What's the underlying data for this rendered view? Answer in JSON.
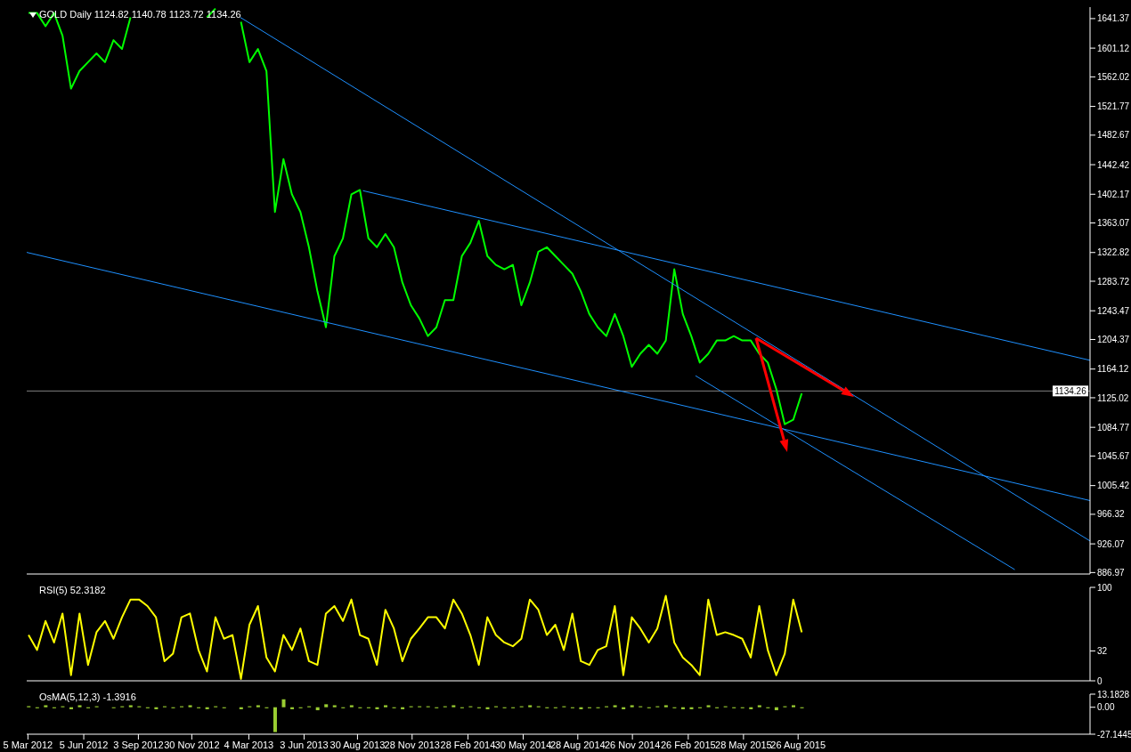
{
  "chart_data": [
    {
      "type": "line",
      "title": "GOLD Daily 1124.82 1140.78 1123.72 1134.26",
      "xlim": [
        "2012-03-03",
        "2016-12-19"
      ],
      "ylim": [
        885,
        1657
      ],
      "yticks": [
        1641.37,
        1601.12,
        1562.02,
        1521.77,
        1482.67,
        1442.42,
        1402.17,
        1363.07,
        1322.82,
        1283.72,
        1243.47,
        1204.37,
        1164.12,
        1125.02,
        1084.77,
        1045.67,
        1005.42,
        966.32,
        926.07,
        886.97
      ],
      "tick_labels": "y",
      "marker": "none",
      "line_style": "solid",
      "series": [
        {
          "color": "#00ff00",
          "x": [
            "2012-03-06",
            "2012-03-20",
            "2012-04-03",
            "2012-04-17",
            "2012-05-01",
            "2012-05-15",
            "2012-05-29",
            "2012-06-12",
            "2012-06-26",
            "2012-07-10",
            "2012-07-24",
            "2012-08-07",
            "2012-08-21",
            "2012-09-04",
            "2012-09-18",
            "2012-10-02",
            "2012-10-16",
            "2012-10-30",
            "2012-11-13",
            "2012-11-27",
            "2012-12-11",
            "2012-12-25",
            "2013-01-08",
            "2013-01-22",
            "2013-02-05",
            "2013-02-19",
            "2013-03-05",
            "2013-03-19",
            "2013-04-02",
            "2013-04-16",
            "2013-04-30",
            "2013-05-14",
            "2013-05-28",
            "2013-06-11",
            "2013-06-25",
            "2013-07-09",
            "2013-07-23",
            "2013-08-06",
            "2013-08-20",
            "2013-09-03",
            "2013-09-17",
            "2013-10-01",
            "2013-10-15",
            "2013-10-29",
            "2013-11-12",
            "2013-11-26",
            "2013-12-10",
            "2013-12-24",
            "2014-01-07",
            "2014-01-21",
            "2014-02-04",
            "2014-02-18",
            "2014-03-04",
            "2014-03-18",
            "2014-04-01",
            "2014-04-15",
            "2014-04-29",
            "2014-05-13",
            "2014-05-27",
            "2014-06-10",
            "2014-06-24",
            "2014-07-08",
            "2014-07-22",
            "2014-08-05",
            "2014-08-19",
            "2014-09-02",
            "2014-09-16",
            "2014-09-30",
            "2014-10-14",
            "2014-10-28",
            "2014-11-11",
            "2014-11-25",
            "2014-12-09",
            "2014-12-23",
            "2015-01-06",
            "2015-01-20",
            "2015-02-03",
            "2015-02-17",
            "2015-03-03",
            "2015-03-17",
            "2015-03-31",
            "2015-04-14",
            "2015-04-28",
            "2015-05-12",
            "2015-05-26",
            "2015-06-09",
            "2015-06-23",
            "2015-07-07",
            "2015-07-21",
            "2015-08-04",
            "2015-08-18",
            "2015-09-01"
          ],
          "values": [
            1649,
            1649,
            1631,
            1649,
            1618,
            1546,
            1570,
            1582,
            1594,
            1582,
            1612,
            1600,
            1643,
            null,
            null,
            null,
            null,
            null,
            null,
            null,
            null,
            1643,
            1655,
            null,
            null,
            1637,
            1582,
            1600,
            1570,
            1378,
            1450,
            1402,
            1378,
            1330,
            1270,
            1221,
            1318,
            1342,
            1402,
            1408,
            1342,
            1330,
            1348,
            1330,
            1282,
            1251,
            1233,
            1209,
            1221,
            1258,
            1258,
            1318,
            1336,
            1366,
            1318,
            1306,
            1300,
            1306,
            1251,
            1282,
            1324,
            1330,
            1318,
            1306,
            1294,
            1270,
            1239,
            1221,
            1209,
            1239,
            1209,
            1167,
            1185,
            1197,
            1185,
            1203,
            1300,
            1239,
            1209,
            1173,
            1185,
            1203,
            1203,
            1209,
            1203,
            1203,
            1185,
            1173,
            1137,
            1089,
            1095,
            1131
          ]
        },
        {
          "color": "#1e90ff",
          "x": [
            "2013-02-18",
            "2016-12-19"
          ],
          "values": [
            1643,
            930
          ]
        },
        {
          "color": "#1e90ff",
          "x": [
            "2013-09-08",
            "2016-12-19"
          ],
          "values": [
            1407,
            1176
          ]
        },
        {
          "color": "#1e90ff",
          "x": [
            "2012-03-03",
            "2016-12-19"
          ],
          "values": [
            1323,
            985
          ]
        },
        {
          "color": "#1e90ff",
          "x": [
            "2015-03-10",
            "2016-08-17"
          ],
          "values": [
            1155,
            891
          ]
        }
      ],
      "ref_lines": [
        {
          "axis": "y",
          "value": 1134.26,
          "label": "1134.26",
          "color": "#808080"
        }
      ]
    },
    {
      "type": "line",
      "title": "RSI(5) 52.3182",
      "xlim": [
        "2012-03-03",
        "2016-12-19"
      ],
      "ylim": [
        0,
        100
      ],
      "yticks": [
        0,
        32,
        100
      ],
      "tick_labels": "y",
      "marker": "none",
      "color": "#ffff00",
      "x": [
        "2012-03-06",
        "2012-03-20",
        "2012-04-03",
        "2012-04-17",
        "2012-05-01",
        "2012-05-15",
        "2012-05-29",
        "2012-06-12",
        "2012-06-26",
        "2012-07-10",
        "2012-07-24",
        "2012-08-07",
        "2012-08-21",
        "2012-09-04",
        "2012-09-18",
        "2012-10-02",
        "2012-10-16",
        "2012-10-30",
        "2012-11-13",
        "2012-11-27",
        "2012-12-11",
        "2012-12-25",
        "2013-01-08",
        "2013-01-22",
        "2013-02-05",
        "2013-02-19",
        "2013-03-05",
        "2013-03-19",
        "2013-04-02",
        "2013-04-16",
        "2013-04-30",
        "2013-05-14",
        "2013-05-28",
        "2013-06-11",
        "2013-06-25",
        "2013-07-09",
        "2013-07-23",
        "2013-08-06",
        "2013-08-20",
        "2013-09-03",
        "2013-09-17",
        "2013-10-01",
        "2013-10-15",
        "2013-10-29",
        "2013-11-12",
        "2013-11-26",
        "2013-12-10",
        "2013-12-24",
        "2014-01-07",
        "2014-01-21",
        "2014-02-04",
        "2014-02-18",
        "2014-03-04",
        "2014-03-18",
        "2014-04-01",
        "2014-04-15",
        "2014-04-29",
        "2014-05-13",
        "2014-05-27",
        "2014-06-10",
        "2014-06-24",
        "2014-07-08",
        "2014-07-22",
        "2014-08-05",
        "2014-08-19",
        "2014-09-02",
        "2014-09-16",
        "2014-09-30",
        "2014-10-14",
        "2014-10-28",
        "2014-11-11",
        "2014-11-25",
        "2014-12-09",
        "2014-12-23",
        "2015-01-06",
        "2015-01-20",
        "2015-02-03",
        "2015-02-17",
        "2015-03-03",
        "2015-03-17",
        "2015-03-31",
        "2015-04-14",
        "2015-04-28",
        "2015-05-12",
        "2015-05-26",
        "2015-06-09",
        "2015-06-23",
        "2015-07-07",
        "2015-07-21",
        "2015-08-04",
        "2015-08-18",
        "2015-09-01"
      ],
      "values": [
        49,
        33,
        64,
        41,
        72,
        6,
        72,
        17,
        52,
        64,
        45,
        68,
        87,
        87,
        80,
        68,
        21,
        29,
        68,
        72,
        33,
        10,
        68,
        45,
        49,
        2,
        60,
        80,
        25,
        10,
        49,
        33,
        56,
        21,
        17,
        72,
        80,
        64,
        87,
        49,
        45,
        17,
        76,
        56,
        21,
        45,
        56,
        68,
        68,
        56,
        87,
        72,
        49,
        17,
        68,
        49,
        41,
        37,
        45,
        87,
        76,
        49,
        60,
        33,
        72,
        21,
        17,
        33,
        37,
        80,
        6,
        68,
        56,
        41,
        56,
        91,
        41,
        25,
        17,
        6,
        87,
        49,
        52,
        49,
        45,
        25,
        80,
        33,
        6,
        29,
        87,
        52
      ]
    },
    {
      "type": "bar",
      "title": "OsMA(5,12,3) -1.3916",
      "xlim": [
        "2012-03-03",
        "2016-12-19"
      ],
      "xticks": [
        {
          "value": "2012-03-05",
          "label": "5 Mar 2012"
        },
        {
          "value": "2012-06-05",
          "label": "5 Jun 2012"
        },
        {
          "value": "2012-09-03",
          "label": "3 Sep 2012"
        },
        {
          "value": "2012-11-30",
          "label": "30 Nov 2012"
        },
        {
          "value": "2013-03-04",
          "label": "4 Mar 2013"
        },
        {
          "value": "2013-06-03",
          "label": "3 Jun 2013"
        },
        {
          "value": "2013-08-30",
          "label": "30 Aug 2013"
        },
        {
          "value": "2013-11-28",
          "label": "28 Nov 2013"
        },
        {
          "value": "2014-02-28",
          "label": "28 Feb 2014"
        },
        {
          "value": "2014-05-30",
          "label": "30 May 2014"
        },
        {
          "value": "2014-08-28",
          "label": "28 Aug 2014"
        },
        {
          "value": "2014-11-26",
          "label": "26 Nov 2014"
        },
        {
          "value": "2015-02-26",
          "label": "26 Feb 2015"
        },
        {
          "value": "2015-05-28",
          "label": "28 May 2015"
        },
        {
          "value": "2015-08-26",
          "label": "26 Aug 2015"
        }
      ],
      "ylim": [
        -27.1445,
        13.1828
      ],
      "yticks": [
        13.1828,
        {
          "value": 0,
          "label": "0.00"
        },
        -27.1445
      ],
      "color": "#9acd32",
      "x": [
        "2012-03-06",
        "2012-03-20",
        "2012-04-03",
        "2012-04-17",
        "2012-05-01",
        "2012-05-15",
        "2012-05-29",
        "2012-06-12",
        "2012-06-26",
        "2012-07-10",
        "2012-07-24",
        "2012-08-07",
        "2012-08-21",
        "2012-09-04",
        "2012-09-18",
        "2012-10-02",
        "2012-10-16",
        "2012-10-30",
        "2012-11-13",
        "2012-11-27",
        "2012-12-11",
        "2012-12-25",
        "2013-01-08",
        "2013-01-22",
        "2013-02-05",
        "2013-02-19",
        "2013-03-05",
        "2013-03-19",
        "2013-04-02",
        "2013-04-16",
        "2013-04-30",
        "2013-05-14",
        "2013-05-28",
        "2013-06-11",
        "2013-06-25",
        "2013-07-09",
        "2013-07-23",
        "2013-08-06",
        "2013-08-20",
        "2013-09-03",
        "2013-09-17",
        "2013-10-01",
        "2013-10-15",
        "2013-10-29",
        "2013-11-12",
        "2013-11-26",
        "2013-12-10",
        "2013-12-24",
        "2014-01-07",
        "2014-01-21",
        "2014-02-04",
        "2014-02-18",
        "2014-03-04",
        "2014-03-18",
        "2014-04-01",
        "2014-04-15",
        "2014-04-29",
        "2014-05-13",
        "2014-05-27",
        "2014-06-10",
        "2014-06-24",
        "2014-07-08",
        "2014-07-22",
        "2014-08-05",
        "2014-08-19",
        "2014-09-02",
        "2014-09-16",
        "2014-09-30",
        "2014-10-14",
        "2014-10-28",
        "2014-11-11",
        "2014-11-25",
        "2014-12-09",
        "2014-12-23",
        "2015-01-06",
        "2015-01-20",
        "2015-02-03",
        "2015-02-17",
        "2015-03-03",
        "2015-03-17",
        "2015-03-31",
        "2015-04-14",
        "2015-04-28",
        "2015-05-12",
        "2015-05-26",
        "2015-06-09",
        "2015-06-23",
        "2015-07-07",
        "2015-07-21",
        "2015-08-04",
        "2015-08-18",
        "2015-09-01"
      ],
      "values": [
        1,
        -1,
        2,
        -1,
        1,
        -2,
        2,
        -1,
        1,
        0,
        -1,
        1,
        2,
        1,
        -1,
        -2,
        1,
        -1,
        1,
        2,
        -1,
        -2,
        1,
        -1,
        0,
        -2,
        1,
        2,
        -1,
        -25,
        8,
        -2,
        -1,
        1,
        -3,
        3,
        2,
        -1,
        2,
        -1,
        -1,
        -2,
        2,
        -1,
        -2,
        1,
        1,
        1,
        -1,
        1,
        2,
        -1,
        1,
        -1,
        -2,
        1,
        -1,
        -1,
        1,
        2,
        1,
        -1,
        -1,
        1,
        -1,
        -2,
        -1,
        -1,
        1,
        2,
        -2,
        2,
        1,
        -1,
        1,
        2,
        -1,
        -2,
        -2,
        -1,
        2,
        -1,
        1,
        -1,
        -1,
        -2,
        2,
        -1,
        -3,
        1,
        2,
        -1
      ]
    }
  ]
}
